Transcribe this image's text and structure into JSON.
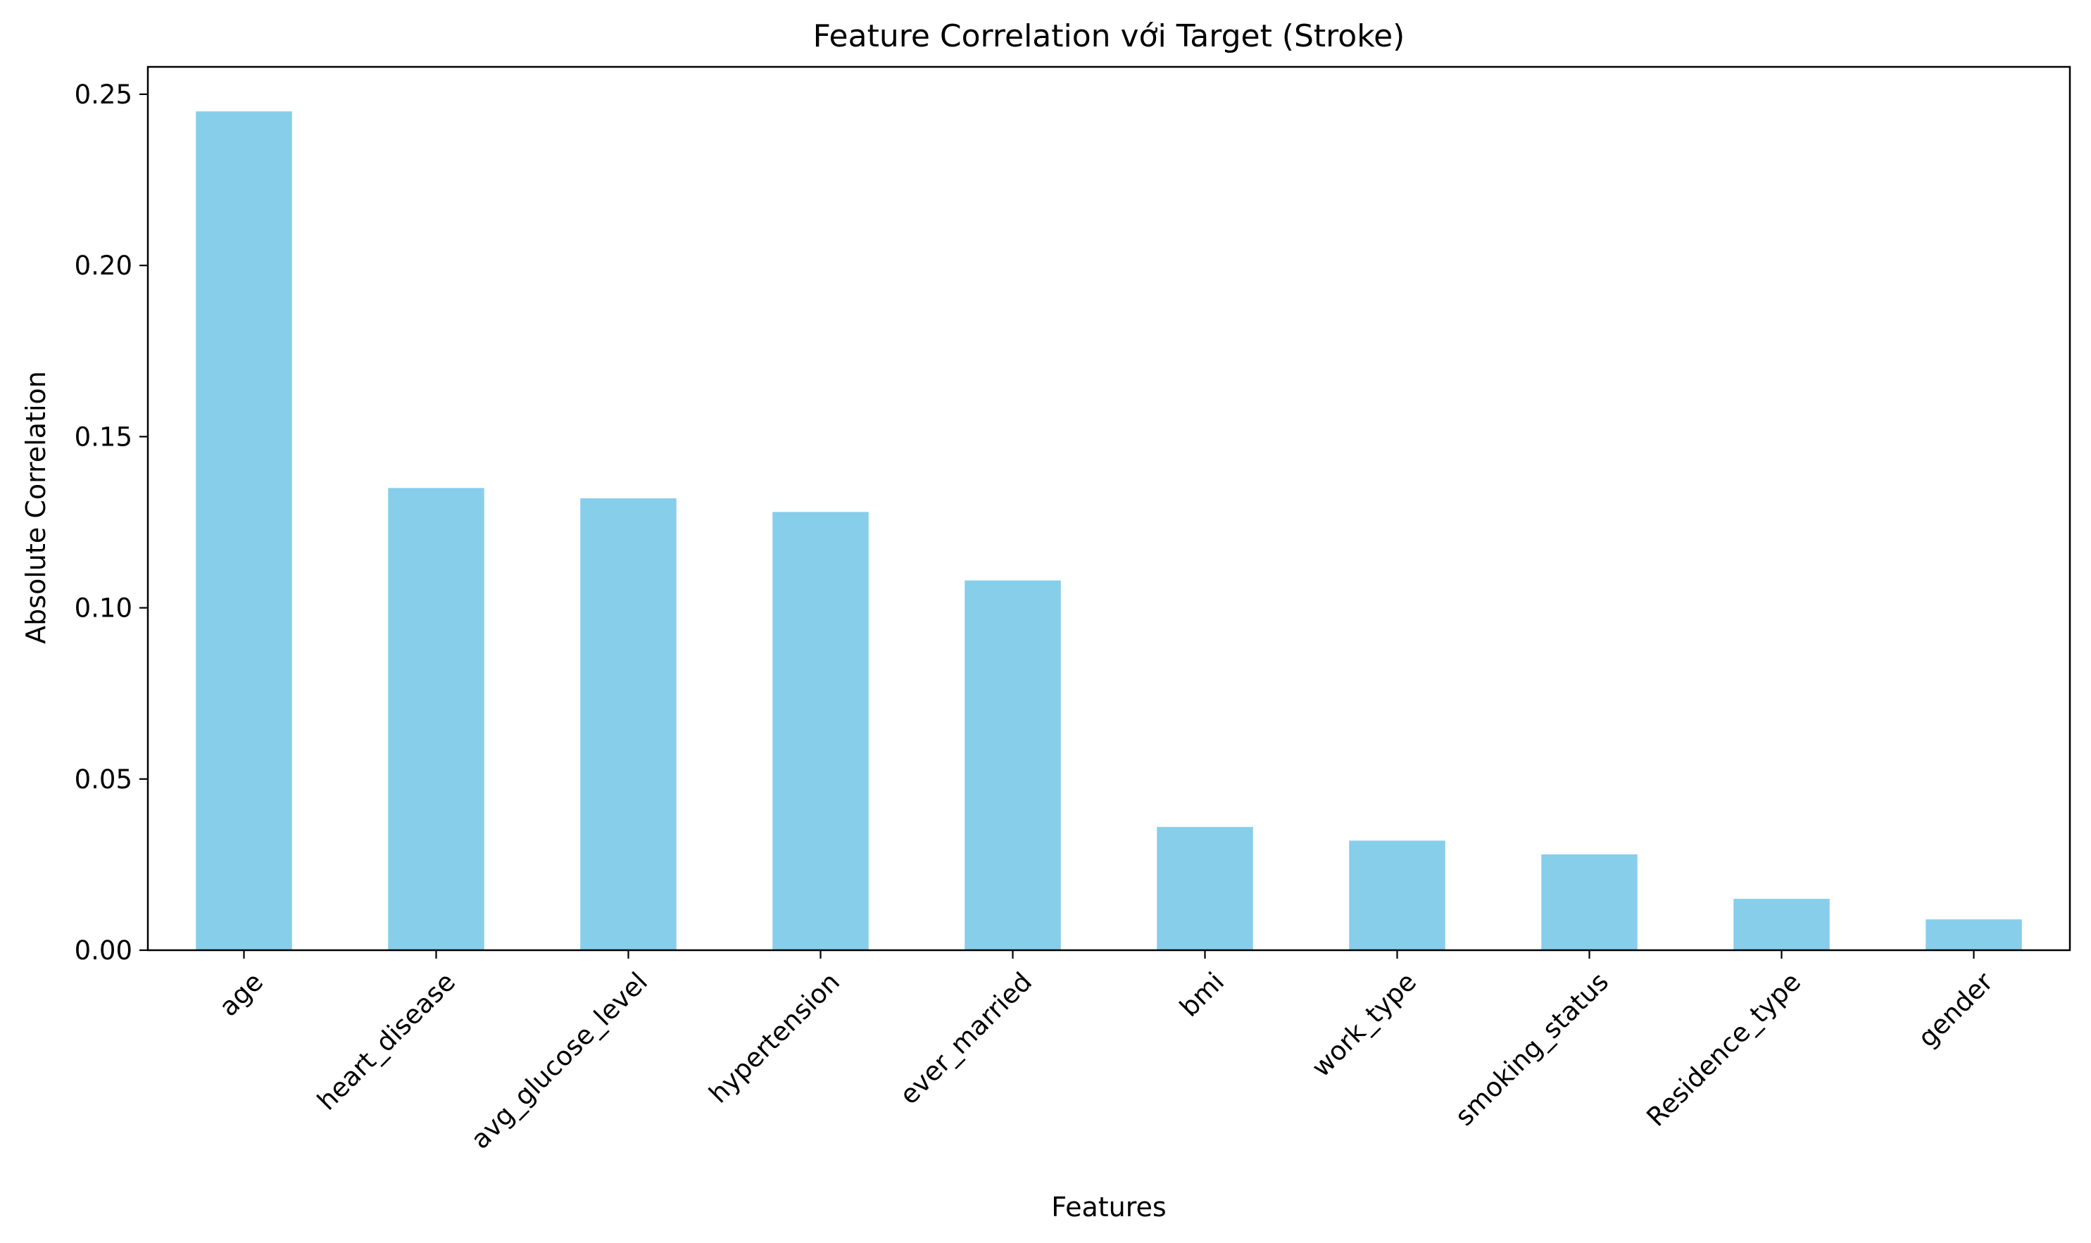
{
  "colors": {
    "bar": "#87CEEB",
    "axis": "#000000",
    "background": "#ffffff"
  },
  "chart_data": {
    "type": "bar",
    "title": "Feature Correlation với Target (Stroke)",
    "xlabel": "Features",
    "ylabel": "Absolute Correlation",
    "categories": [
      "age",
      "heart_disease",
      "avg_glucose_level",
      "hypertension",
      "ever_married",
      "bmi",
      "work_type",
      "smoking_status",
      "Residence_type",
      "gender"
    ],
    "values": [
      0.245,
      0.135,
      0.132,
      0.128,
      0.108,
      0.036,
      0.032,
      0.028,
      0.015,
      0.009
    ],
    "ylim": [
      0,
      0.258
    ],
    "yticks": [
      "0.00",
      "0.05",
      "0.10",
      "0.15",
      "0.20",
      "0.25"
    ],
    "grid": false,
    "legend": "none"
  }
}
